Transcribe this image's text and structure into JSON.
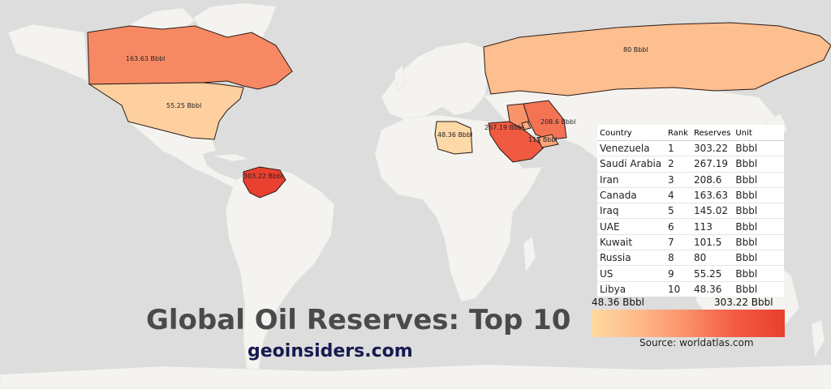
{
  "title": "Global Oil Reserves: Top 10",
  "brand": "geoinsiders.com",
  "source": "Source: worldatlas.com",
  "colorbar": {
    "min_label": "48.36 Bbbl",
    "max_label": "303.22 Bbbl",
    "colors": [
      "#fdd9a0",
      "#ea3f2f"
    ]
  },
  "table": {
    "headers": [
      "Country",
      "Rank",
      "Reserves",
      "Unit"
    ],
    "rows": [
      [
        "Venezuela",
        "1",
        "303.22",
        "Bbbl"
      ],
      [
        "Saudi Arabia",
        "2",
        "267.19",
        "Bbbl"
      ],
      [
        "Iran",
        "3",
        "208.6",
        "Bbbl"
      ],
      [
        "Canada",
        "4",
        "163.63",
        "Bbbl"
      ],
      [
        "Iraq",
        "5",
        "145.02",
        "Bbbl"
      ],
      [
        "UAE",
        "6",
        "113",
        "Bbbl"
      ],
      [
        "Kuwait",
        "7",
        "101.5",
        "Bbbl"
      ],
      [
        "Russia",
        "8",
        "80",
        "Bbbl"
      ],
      [
        "US",
        "9",
        "55.25",
        "Bbbl"
      ],
      [
        "Libya",
        "10",
        "48.36",
        "Bbbl"
      ]
    ]
  },
  "map_labels": {
    "canada": "163.63 Bbbl",
    "us": "55.25 Bbbl",
    "russia": "80 Bbbl",
    "libya": "48.36 Bbbl",
    "saudi": "267.19 Bbbl",
    "iran": "208.6 Bbbl",
    "uae": "113 Bbbl",
    "venezuela": "303.22 Bbbl"
  },
  "highlight_colors": {
    "venezuela": "#e9402f",
    "saudi": "#ef5a40",
    "iran": "#f47355",
    "canada": "#f68963",
    "iraq": "#f8946a",
    "uae": "#fba578",
    "kuwait": "#fbac7d",
    "russia": "#fdbe90",
    "us": "#fed0a0",
    "libya": "#fed9a8"
  }
}
